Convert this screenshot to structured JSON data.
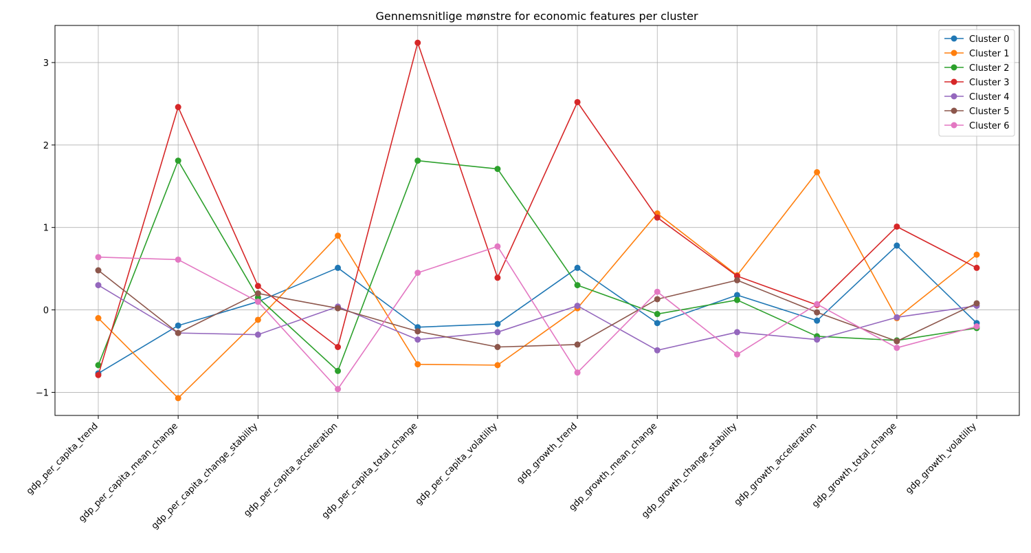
{
  "chart_data": {
    "type": "line",
    "title": "Gennemsnitlige mønstre for economic features per cluster",
    "xlabel": "",
    "ylabel": "",
    "categories": [
      "gdp_per_capita_trend",
      "gdp_per_capita_mean_change",
      "gdp_per_capita_change_stability",
      "gdp_per_capita_acceleration",
      "gdp_per_capita_total_change",
      "gdp_per_capita_volatility",
      "gdp_growth_trend",
      "gdp_growth_mean_change",
      "gdp_growth_change_stability",
      "gdp_growth_acceleration",
      "gdp_growth_total_change",
      "gdp_growth_volatility"
    ],
    "ylim": [
      -1.28,
      3.45
    ],
    "yticks": [
      {
        "value": -1,
        "label": "−1"
      },
      {
        "value": 0,
        "label": "0"
      },
      {
        "value": 1,
        "label": "1"
      },
      {
        "value": 2,
        "label": "2"
      },
      {
        "value": 3,
        "label": "3"
      }
    ],
    "grid": true,
    "legend_position": "top-right",
    "marker": "circle",
    "series": [
      {
        "name": "Cluster 0",
        "color": "#1f77b4",
        "values": [
          -0.77,
          -0.19,
          0.1,
          0.51,
          -0.21,
          -0.17,
          0.51,
          -0.16,
          0.18,
          -0.13,
          0.78,
          -0.16
        ]
      },
      {
        "name": "Cluster 1",
        "color": "#ff7f0e",
        "values": [
          -0.1,
          -1.07,
          -0.12,
          0.9,
          -0.66,
          -0.67,
          0.02,
          1.17,
          0.42,
          1.67,
          -0.1,
          0.67
        ]
      },
      {
        "name": "Cluster 2",
        "color": "#2ca02c",
        "values": [
          -0.67,
          1.81,
          0.15,
          -0.74,
          1.81,
          1.71,
          0.3,
          -0.05,
          0.12,
          -0.32,
          -0.37,
          -0.22
        ]
      },
      {
        "name": "Cluster 3",
        "color": "#d62728",
        "values": [
          -0.79,
          2.46,
          0.29,
          -0.45,
          3.24,
          0.39,
          2.52,
          1.12,
          0.41,
          0.06,
          1.01,
          0.51
        ]
      },
      {
        "name": "Cluster 4",
        "color": "#9467bd",
        "values": [
          0.3,
          -0.28,
          -0.3,
          0.04,
          -0.36,
          -0.27,
          0.05,
          -0.49,
          -0.27,
          -0.36,
          -0.09,
          0.05
        ]
      },
      {
        "name": "Cluster 5",
        "color": "#8c564b",
        "values": [
          0.48,
          -0.28,
          0.2,
          0.02,
          -0.26,
          -0.45,
          -0.42,
          0.13,
          0.36,
          -0.03,
          -0.38,
          0.08
        ]
      },
      {
        "name": "Cluster 6",
        "color": "#e377c2",
        "values": [
          0.64,
          0.61,
          0.1,
          -0.96,
          0.45,
          0.77,
          -0.76,
          0.22,
          -0.54,
          0.07,
          -0.46,
          -0.2
        ]
      }
    ]
  }
}
